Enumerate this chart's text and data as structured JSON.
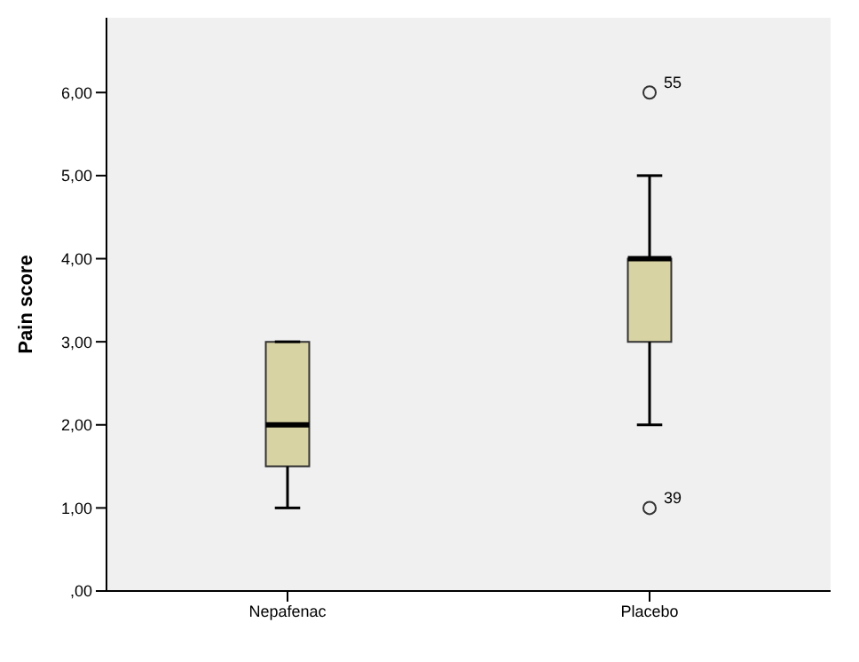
{
  "chart_data": {
    "type": "box",
    "ylabel": "Pain score",
    "categories": [
      "Nepafenac",
      "Placebo"
    ],
    "color": "#d8d3a2",
    "boxes": [
      {
        "low": 1,
        "q1": 1.5,
        "median": 2,
        "q3": 3,
        "high": 3
      },
      {
        "low": 2,
        "q1": 3,
        "median": 4,
        "q3": 4,
        "high": 5,
        "outliers": [
          6,
          1
        ]
      }
    ],
    "ylim": [
      0,
      6.9
    ],
    "yticks": [
      {
        "value": 0,
        "label": ",00"
      },
      {
        "value": 1,
        "label": "1,00"
      },
      {
        "value": 2,
        "label": "2,00"
      },
      {
        "value": 3,
        "label": "3,00"
      },
      {
        "value": 4,
        "label": "4,00"
      },
      {
        "value": 5,
        "label": "5,00"
      },
      {
        "value": 6,
        "label": "6,00"
      }
    ],
    "annotations": [
      "55",
      "39"
    ],
    "grid": false
  }
}
